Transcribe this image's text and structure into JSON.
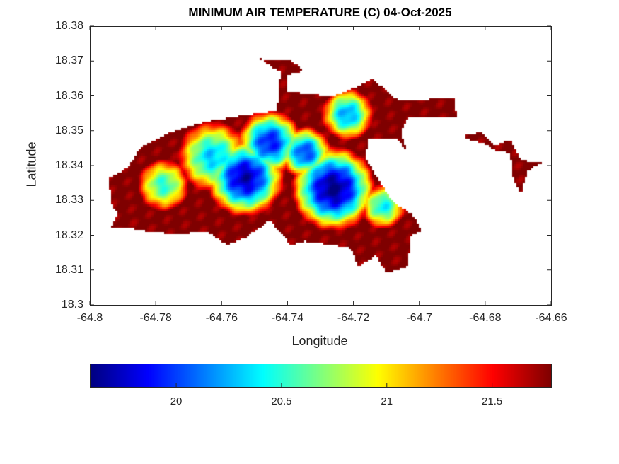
{
  "chart_data": {
    "type": "heatmap",
    "title": "MINIMUM AIR TEMPERATURE (C) 04-Oct-2025",
    "xlabel": "Longitude",
    "ylabel": "Latitude",
    "xlim": [
      -64.8,
      -64.66
    ],
    "ylim": [
      18.3,
      18.38
    ],
    "xticks": [
      -64.8,
      -64.78,
      -64.76,
      -64.74,
      -64.72,
      -64.7,
      -64.68,
      -64.66
    ],
    "xtick_labels": [
      "-64.8",
      "-64.78",
      "-64.76",
      "-64.74",
      "-64.72",
      "-64.7",
      "-64.68",
      "-64.66"
    ],
    "yticks": [
      18.3,
      18.31,
      18.32,
      18.33,
      18.34,
      18.35,
      18.36,
      18.37,
      18.38
    ],
    "ytick_labels": [
      "18.3",
      "18.31",
      "18.32",
      "18.33",
      "18.34",
      "18.35",
      "18.36",
      "18.37",
      "18.38"
    ],
    "colormap": "jet",
    "clim": [
      19.59,
      21.78
    ],
    "colorbar": {
      "location": "south",
      "ticks": [
        20,
        20.5,
        21,
        21.5
      ],
      "tick_labels": [
        "20",
        "20.5",
        "21",
        "21.5"
      ]
    },
    "grid": false,
    "land_outline": [
      [
        [
          -64.7944,
          18.3368
        ],
        [
          -64.7886,
          18.3398
        ],
        [
          -64.785,
          18.3455
        ],
        [
          -64.7757,
          18.3499
        ],
        [
          -64.765,
          18.353
        ],
        [
          -64.751,
          18.355
        ],
        [
          -64.7435,
          18.356
        ],
        [
          -64.7425,
          18.3672
        ],
        [
          -64.7489,
          18.3709
        ],
        [
          -64.7392,
          18.3703
        ],
        [
          -64.7354,
          18.3676
        ],
        [
          -64.7403,
          18.3662
        ],
        [
          -64.7403,
          18.3615
        ],
        [
          -64.7264,
          18.3601
        ],
        [
          -64.7178,
          18.3636
        ],
        [
          -64.7145,
          18.3652
        ],
        [
          -64.707,
          18.3591
        ],
        [
          -64.7038,
          18.3591
        ],
        [
          -64.6898,
          18.3595
        ],
        [
          -64.6888,
          18.354
        ],
        [
          -64.7038,
          18.354
        ],
        [
          -64.7059,
          18.3499
        ],
        [
          -64.7038,
          18.3439
        ],
        [
          -64.707,
          18.3479
        ],
        [
          -64.7156,
          18.3479
        ],
        [
          -64.7167,
          18.3428
        ],
        [
          -64.7124,
          18.3357
        ],
        [
          -64.7081,
          18.3296
        ],
        [
          -64.7027,
          18.3266
        ],
        [
          -64.6995,
          18.3215
        ],
        [
          -64.7027,
          18.3205
        ],
        [
          -64.7038,
          18.3114
        ],
        [
          -64.7102,
          18.3093
        ],
        [
          -64.7135,
          18.3144
        ],
        [
          -64.7188,
          18.3114
        ],
        [
          -64.721,
          18.3165
        ],
        [
          -64.7264,
          18.3175
        ],
        [
          -64.7349,
          18.3185
        ],
        [
          -64.7392,
          18.3175
        ],
        [
          -64.7457,
          18.3246
        ],
        [
          -64.7532,
          18.3195
        ],
        [
          -64.7586,
          18.3175
        ],
        [
          -64.765,
          18.3215
        ],
        [
          -64.7736,
          18.3205
        ],
        [
          -64.7833,
          18.3215
        ],
        [
          -64.7886,
          18.3225
        ],
        [
          -64.794,
          18.3225
        ],
        [
          -64.7918,
          18.3266
        ],
        [
          -64.794,
          18.3296
        ]
      ],
      [
        [
          -64.6866,
          18.3489
        ],
        [
          -64.6813,
          18.3499
        ],
        [
          -64.677,
          18.3459
        ],
        [
          -64.6727,
          18.3479
        ],
        [
          -64.6695,
          18.3418
        ],
        [
          -64.663,
          18.3412
        ],
        [
          -64.6673,
          18.3388
        ],
        [
          -64.6695,
          18.3323
        ],
        [
          -64.6716,
          18.3357
        ],
        [
          -64.6727,
          18.3439
        ],
        [
          -64.677,
          18.3445
        ],
        [
          -64.6813,
          18.3469
        ],
        [
          -64.6856,
          18.3479
        ]
      ]
    ],
    "cool_cores": [
      {
        "lon": -64.7532,
        "lat": 18.3368,
        "value": 19.7,
        "radius": 0.012
      },
      {
        "lon": -64.7264,
        "lat": 18.3337,
        "value": 19.6,
        "radius": 0.013
      },
      {
        "lon": -64.7457,
        "lat": 18.3469,
        "value": 19.9,
        "radius": 0.01
      },
      {
        "lon": -64.7629,
        "lat": 18.3428,
        "value": 20.3,
        "radius": 0.011
      },
      {
        "lon": -64.7779,
        "lat": 18.3347,
        "value": 20.5,
        "radius": 0.008
      },
      {
        "lon": -64.7221,
        "lat": 18.355,
        "value": 20.2,
        "radius": 0.008
      },
      {
        "lon": -64.7113,
        "lat": 18.3286,
        "value": 20.4,
        "radius": 0.007
      },
      {
        "lon": -64.735,
        "lat": 18.344,
        "value": 20.0,
        "radius": 0.008
      }
    ]
  }
}
